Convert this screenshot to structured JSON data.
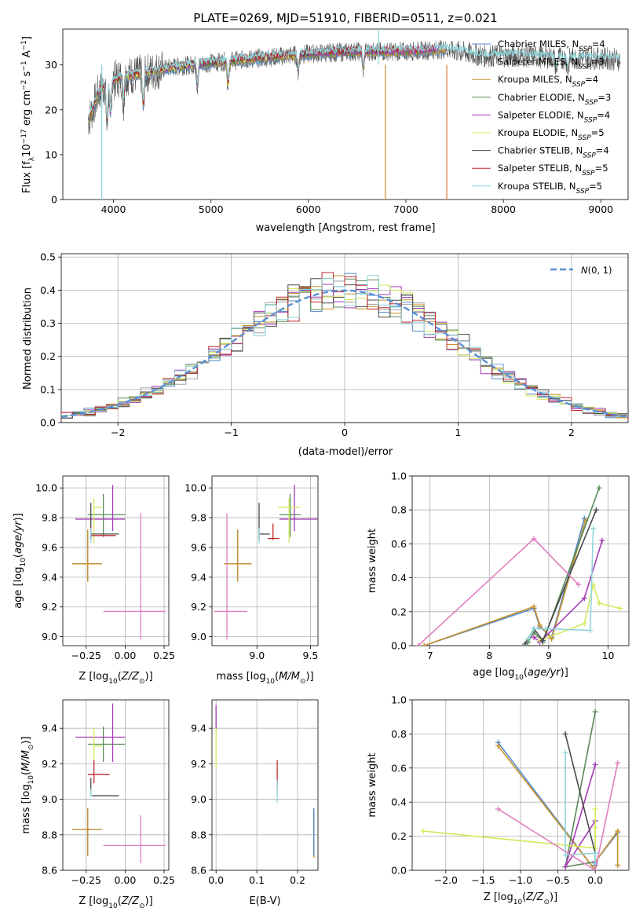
{
  "figure": {
    "title": "PLATE=0269, MJD=51910, FIBERID=0511, z=0.021"
  },
  "series": [
    {
      "name": "Chabrier MILES",
      "nssp": "4",
      "color": "#4f86c6"
    },
    {
      "name": "Salpeter MILES",
      "nssp": "3",
      "color": "#a0a0a0"
    },
    {
      "name": "Kroupa MILES",
      "nssp": "4",
      "color": "#c8922a"
    },
    {
      "name": "Chabrier ELODIE",
      "nssp": "3",
      "color": "#5a8a5a"
    },
    {
      "name": "Salpeter ELODIE",
      "nssp": "4",
      "color": "#a23cb4"
    },
    {
      "name": "Kroupa ELODIE",
      "nssp": "5",
      "color": "#d2ea5a"
    },
    {
      "name": "Chabrier STELIB",
      "nssp": "4",
      "color": "#4a4a4a"
    },
    {
      "name": "Salpeter STELIB",
      "nssp": "5",
      "color": "#c0282d"
    },
    {
      "name": "Kroupa STELIB",
      "nssp": "5",
      "color": "#8fd5dc"
    }
  ],
  "chart_data": [
    {
      "id": "spectrum",
      "type": "line",
      "xlabel": "wavelength [Angstrom, rest frame]",
      "ylabel": "Flux [f_lambda 10^-17 erg cm^-2 s^-1 A^-1]",
      "xlim": [
        3480,
        9280
      ],
      "ylim": [
        0,
        38
      ],
      "xticks": [
        4000,
        5000,
        6000,
        7000,
        8000,
        9000
      ],
      "yticks": [
        0,
        10,
        20,
        30
      ],
      "legend": "top-right",
      "continuum": [
        [
          3750,
          18
        ],
        [
          3850,
          24
        ],
        [
          3950,
          26
        ],
        [
          4100,
          27.5
        ],
        [
          4300,
          28
        ],
        [
          4600,
          29.5
        ],
        [
          5000,
          30.5
        ],
        [
          5500,
          31.5
        ],
        [
          6000,
          32.5
        ],
        [
          6500,
          33
        ],
        [
          7000,
          33
        ],
        [
          7400,
          33.5
        ],
        [
          7800,
          32
        ],
        [
          8200,
          32
        ],
        [
          8600,
          31.5
        ],
        [
          9000,
          31.5
        ],
        [
          9280,
          31
        ]
      ],
      "absorption_dips": [
        [
          3934,
          10
        ],
        [
          3969,
          8
        ],
        [
          4102,
          6
        ],
        [
          4305,
          8
        ],
        [
          4861,
          5
        ],
        [
          5175,
          6
        ],
        [
          5895,
          4
        ],
        [
          6563,
          4
        ],
        [
          8542,
          3
        ],
        [
          8662,
          3
        ]
      ],
      "spikes": [
        [
          3880,
          0
        ],
        [
          6790,
          0
        ],
        [
          7420,
          0
        ],
        [
          6720,
          40
        ]
      ]
    },
    {
      "id": "residual-histogram",
      "type": "histogram",
      "xlabel": "(data-model)/error",
      "ylabel": "Normed distribution",
      "xlim": [
        -2.5,
        2.5
      ],
      "ylim": [
        0,
        0.51
      ],
      "xticks": [
        -2,
        -1,
        0,
        1,
        2
      ],
      "yticks": [
        0.0,
        0.1,
        0.2,
        0.3,
        0.4,
        0.5
      ],
      "bin_width": 0.1,
      "reference_curve": {
        "name": "N(0,1)",
        "type": "gaussian",
        "mean": 0,
        "sigma": 1,
        "style": "dashed"
      },
      "legend": "top-right"
    },
    {
      "id": "age-vs-Z",
      "type": "errorbar",
      "xlabel": "Z [log10(Z/Zsun)]",
      "ylabel": "age [log10(age/yr)]",
      "xlim": [
        -0.4,
        0.28
      ],
      "ylim": [
        8.94,
        10.08
      ],
      "xticks": [
        -0.25,
        0.0,
        0.25
      ],
      "yticks": [
        9.0,
        9.2,
        9.4,
        9.6,
        9.8,
        10.0
      ],
      "points": [
        {
          "series": 0,
          "x": -0.24,
          "y": 9.49,
          "xerr": [
            0.1,
            0.09
          ],
          "yerr": [
            0.12,
            0.23
          ]
        },
        {
          "series": 1,
          "x": -0.24,
          "y": 9.49,
          "xerr": [
            0.1,
            0.09
          ],
          "yerr": [
            0.12,
            0.23
          ]
        },
        {
          "series": 2,
          "x": -0.24,
          "y": 9.49,
          "xerr": [
            0.1,
            0.09
          ],
          "yerr": [
            0.12,
            0.23
          ]
        },
        {
          "series": 3,
          "x": -0.14,
          "y": 9.82,
          "xerr": [
            0.1,
            0.14
          ],
          "yerr": [
            0.15,
            0.14
          ]
        },
        {
          "series": 4,
          "x": -0.08,
          "y": 9.79,
          "xerr": [
            0.24,
            0.08
          ],
          "yerr": [
            0.08,
            0.23
          ]
        },
        {
          "series": 5,
          "x": -0.2,
          "y": 9.87,
          "xerr": [
            0.0,
            0.05
          ],
          "yerr": [
            0.24,
            0.06
          ]
        },
        {
          "series": 6,
          "x": -0.22,
          "y": 9.69,
          "xerr": [
            0.0,
            0.18
          ],
          "yerr": [
            0.04,
            0.21
          ]
        },
        {
          "series": 7,
          "x": -0.22,
          "y": 9.68,
          "xerr": [
            0.0,
            0.16
          ],
          "yerr": [
            0.03,
            0.06
          ]
        },
        {
          "series": 8,
          "x": -0.22,
          "y": 9.67,
          "xerr": [
            0.01,
            0.01
          ],
          "yerr": [
            0.04,
            0.06
          ]
        },
        {
          "series": 10,
          "x": 0.1,
          "y": 9.17,
          "xerr": [
            0.24,
            0.16
          ],
          "yerr": [
            0.19,
            0.66
          ]
        }
      ]
    },
    {
      "id": "age-vs-mass",
      "type": "errorbar",
      "xlabel": "mass [log10(M/Msun)]",
      "ylabel": "",
      "xlim": [
        8.58,
        9.57
      ],
      "ylim": [
        8.94,
        10.08
      ],
      "xticks": [
        9.0,
        9.5
      ],
      "yticks": [
        9.0,
        9.2,
        9.4,
        9.6,
        9.8,
        10.0
      ],
      "points": [
        {
          "series": 0,
          "x": 8.82,
          "y": 9.49,
          "xerr": [
            0.13,
            0.13
          ],
          "yerr": [
            0.12,
            0.23
          ]
        },
        {
          "series": 2,
          "x": 8.82,
          "y": 9.49,
          "xerr": [
            0.13,
            0.13
          ],
          "yerr": [
            0.12,
            0.23
          ]
        },
        {
          "series": 3,
          "x": 9.31,
          "y": 9.82,
          "xerr": [
            0.1,
            0.1
          ],
          "yerr": [
            0.15,
            0.14
          ]
        },
        {
          "series": 4,
          "x": 9.35,
          "y": 9.79,
          "xerr": [
            0.14,
            0.22
          ],
          "yerr": [
            0.08,
            0.23
          ]
        },
        {
          "series": 5,
          "x": 9.3,
          "y": 9.87,
          "xerr": [
            0.1,
            0.1
          ],
          "yerr": [
            0.24,
            0.06
          ]
        },
        {
          "series": 6,
          "x": 9.02,
          "y": 9.69,
          "xerr": [
            0.0,
            0.1
          ],
          "yerr": [
            0.04,
            0.21
          ]
        },
        {
          "series": 7,
          "x": 9.15,
          "y": 9.66,
          "xerr": [
            0.05,
            0.06
          ],
          "yerr": [
            0.01,
            0.1
          ]
        },
        {
          "series": 8,
          "x": 9.02,
          "y": 9.67,
          "xerr": [
            0.01,
            0.0
          ],
          "yerr": [
            0.04,
            0.06
          ]
        },
        {
          "series": 10,
          "x": 8.72,
          "y": 9.17,
          "xerr": [
            0.12,
            0.19
          ],
          "yerr": [
            0.19,
            0.66
          ]
        }
      ]
    },
    {
      "id": "mass-weight-vs-age",
      "type": "line",
      "xlabel": "age [log10(age/yr)]",
      "ylabel": "mass weight",
      "xlim": [
        6.7,
        10.35
      ],
      "ylim": [
        0,
        1
      ],
      "xticks": [
        7,
        8,
        9,
        10
      ],
      "yticks": [
        0.0,
        0.2,
        0.4,
        0.6,
        0.8,
        1.0
      ],
      "lines": [
        {
          "series": 0,
          "points": [
            [
              6.9,
              0.0
            ],
            [
              8.75,
              0.22
            ],
            [
              8.85,
              0.11
            ],
            [
              9.05,
              0.05
            ],
            [
              9.6,
              0.75
            ]
          ]
        },
        {
          "series": 2,
          "points": [
            [
              6.9,
              0.0
            ],
            [
              8.75,
              0.23
            ],
            [
              8.85,
              0.12
            ],
            [
              9.05,
              0.04
            ],
            [
              9.62,
              0.74
            ]
          ]
        },
        {
          "series": 3,
          "points": [
            [
              8.65,
              0.02
            ],
            [
              8.75,
              0.08
            ],
            [
              8.9,
              0.02
            ],
            [
              9.85,
              0.93
            ]
          ]
        },
        {
          "series": 4,
          "points": [
            [
              8.75,
              0.05
            ],
            [
              8.85,
              0.02
            ],
            [
              9.6,
              0.28
            ],
            [
              9.9,
              0.62
            ]
          ]
        },
        {
          "series": 5,
          "points": [
            [
              8.85,
              0.03
            ],
            [
              9.6,
              0.13
            ],
            [
              9.75,
              0.36
            ],
            [
              9.85,
              0.25
            ],
            [
              10.2,
              0.22
            ]
          ]
        },
        {
          "series": 6,
          "points": [
            [
              8.6,
              0.01
            ],
            [
              8.75,
              0.1
            ],
            [
              8.9,
              0.03
            ],
            [
              9.8,
              0.8
            ]
          ]
        },
        {
          "series": 8,
          "points": [
            [
              8.65,
              0.04
            ],
            [
              8.75,
              0.1
            ],
            [
              8.95,
              0.1
            ],
            [
              9.7,
              0.09
            ],
            [
              9.75,
              0.69
            ]
          ]
        },
        {
          "series": 10,
          "points": [
            [
              6.8,
              0.0
            ],
            [
              8.75,
              0.63
            ],
            [
              9.5,
              0.36
            ]
          ]
        }
      ]
    },
    {
      "id": "mass-vs-Z",
      "type": "errorbar",
      "xlabel": "Z [log10(Z/Zsun)]",
      "ylabel": "mass [log10(M/Msun)]",
      "xlim": [
        -0.4,
        0.28
      ],
      "ylim": [
        8.6,
        9.56
      ],
      "xticks": [
        -0.25,
        0.0,
        0.25
      ],
      "yticks": [
        8.6,
        8.8,
        9.0,
        9.2,
        9.4
      ],
      "points": [
        {
          "series": 0,
          "x": -0.24,
          "y": 8.83,
          "xerr": [
            0.1,
            0.09
          ],
          "yerr": [
            0.15,
            0.12
          ]
        },
        {
          "series": 2,
          "x": -0.24,
          "y": 8.83,
          "xerr": [
            0.1,
            0.09
          ],
          "yerr": [
            0.15,
            0.12
          ]
        },
        {
          "series": 3,
          "x": -0.14,
          "y": 9.31,
          "xerr": [
            0.1,
            0.14
          ],
          "yerr": [
            0.1,
            0.1
          ]
        },
        {
          "series": 4,
          "x": -0.08,
          "y": 9.35,
          "xerr": [
            0.24,
            0.08
          ],
          "yerr": [
            0.14,
            0.19
          ]
        },
        {
          "series": 5,
          "x": -0.2,
          "y": 9.3,
          "xerr": [
            0.0,
            0.05
          ],
          "yerr": [
            0.1,
            0.1
          ]
        },
        {
          "series": 6,
          "x": -0.22,
          "y": 9.02,
          "xerr": [
            0.0,
            0.18
          ],
          "yerr": [
            0.0,
            0.1
          ]
        },
        {
          "series": 7,
          "x": -0.2,
          "y": 9.14,
          "xerr": [
            0.04,
            0.1
          ],
          "yerr": [
            0.05,
            0.08
          ]
        },
        {
          "series": 8,
          "x": -0.22,
          "y": 9.02,
          "xerr": [
            0.01,
            0.01
          ],
          "yerr": [
            0.0,
            0.04
          ]
        },
        {
          "series": 10,
          "x": 0.1,
          "y": 8.74,
          "xerr": [
            0.24,
            0.16
          ],
          "yerr": [
            0.1,
            0.17
          ]
        }
      ]
    },
    {
      "id": "mass-vs-EBV",
      "type": "errorbar",
      "xlabel": "E(B-V)",
      "ylabel": "",
      "xlim": [
        -0.01,
        0.25
      ],
      "ylim": [
        8.6,
        9.56
      ],
      "xticks": [
        0.0,
        0.1,
        0.2
      ],
      "yticks": [
        8.6,
        8.8,
        9.0,
        9.2,
        9.4
      ],
      "points": [
        {
          "series": 4,
          "x": 0.0,
          "y": 9.46,
          "xerr": [
            0.0,
            0.0
          ],
          "yerr": [
            0.08,
            0.07
          ]
        },
        {
          "series": 5,
          "x": 0.0,
          "y": 9.28,
          "xerr": [
            0.0,
            0.0
          ],
          "yerr": [
            0.1,
            0.12
          ]
        },
        {
          "series": 7,
          "x": 0.15,
          "y": 9.12,
          "xerr": [
            0.0,
            0.0
          ],
          "yerr": [
            0.07,
            0.1
          ]
        },
        {
          "series": 8,
          "x": 0.15,
          "y": 9.04,
          "xerr": [
            0.0,
            0.0
          ],
          "yerr": [
            0.06,
            0.07
          ]
        },
        {
          "series": 2,
          "x": 0.24,
          "y": 8.8,
          "xerr": [
            0.0,
            0.0
          ],
          "yerr": [
            0.13,
            0.14
          ]
        },
        {
          "series": 0,
          "x": 0.24,
          "y": 8.82,
          "xerr": [
            0.0,
            0.0
          ],
          "yerr": [
            0.14,
            0.13
          ]
        }
      ]
    },
    {
      "id": "mass-weight-vs-Z",
      "type": "line",
      "xlabel": "Z [log10(Z/Zsun)]",
      "ylabel": "mass weight",
      "xlim": [
        -2.45,
        0.45
      ],
      "ylim": [
        0,
        1
      ],
      "xticks": [
        -2.0,
        -1.5,
        -1.0,
        -0.5,
        0.0
      ],
      "yticks": [
        0.0,
        0.2,
        0.4,
        0.6,
        0.8,
        1.0
      ],
      "lines": [
        {
          "series": 0,
          "points": [
            [
              -1.3,
              0.75
            ],
            [
              0.0,
              0.0
            ],
            [
              0.0,
              0.05
            ],
            [
              0.3,
              0.22
            ],
            [
              0.3,
              0.03
            ]
          ]
        },
        {
          "series": 2,
          "points": [
            [
              -1.3,
              0.73
            ],
            [
              0.0,
              0.0
            ],
            [
              0.0,
              0.05
            ],
            [
              0.3,
              0.23
            ],
            [
              0.3,
              0.03
            ]
          ]
        },
        {
          "series": 3,
          "points": [
            [
              0.0,
              0.93
            ],
            [
              -0.4,
              0.02
            ],
            [
              0.0,
              0.05
            ]
          ]
        },
        {
          "series": 4,
          "points": [
            [
              0.0,
              0.62
            ],
            [
              -0.4,
              0.02
            ],
            [
              0.0,
              0.29
            ],
            [
              0.0,
              0.05
            ]
          ]
        },
        {
          "series": 5,
          "points": [
            [
              -2.3,
              0.23
            ],
            [
              0.0,
              0.13
            ],
            [
              0.0,
              0.36
            ],
            [
              0.0,
              0.25
            ]
          ]
        },
        {
          "series": 6,
          "points": [
            [
              -0.4,
              0.8
            ],
            [
              0.0,
              0.1
            ],
            [
              0.0,
              0.03
            ]
          ]
        },
        {
          "series": 8,
          "points": [
            [
              -0.4,
              0.69
            ],
            [
              -0.4,
              0.09
            ],
            [
              0.0,
              0.1
            ],
            [
              0.0,
              0.04
            ]
          ]
        },
        {
          "series": 10,
          "points": [
            [
              -1.3,
              0.36
            ],
            [
              0.0,
              0.0
            ],
            [
              0.3,
              0.63
            ]
          ]
        }
      ]
    }
  ],
  "extra_colors": {
    "pink": "#e07fbf",
    "orange": "#e07b39",
    "gaussian": "#5b8fd6"
  }
}
